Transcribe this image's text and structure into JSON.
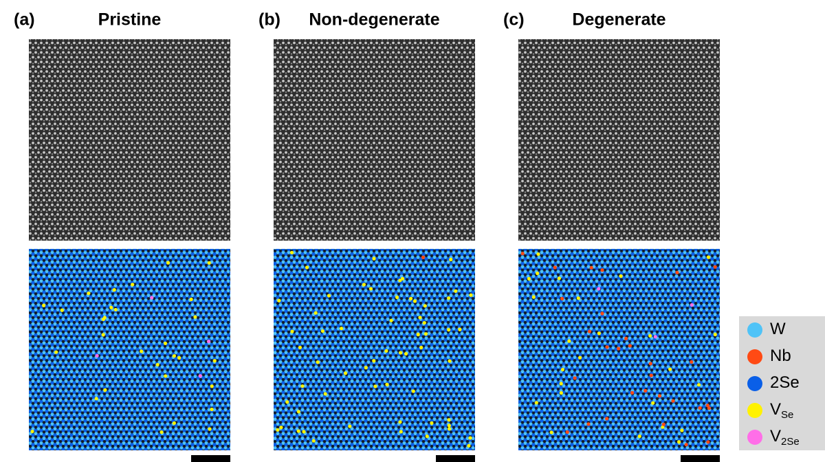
{
  "panels": [
    {
      "label": "(a)",
      "title": "Pristine"
    },
    {
      "label": "(b)",
      "title": "Non-degenerate"
    },
    {
      "label": "(c)",
      "title": "Degenerate"
    }
  ],
  "legend": {
    "items": [
      {
        "main": "W",
        "color": "#4fc3f7"
      },
      {
        "main": "Nb",
        "color": "#ff4a14"
      },
      {
        "main": "2Se",
        "color": "#0a5fe8"
      },
      {
        "main": "V",
        "sub": "Se",
        "color": "#fff200"
      },
      {
        "main": "V",
        "sub": "2Se",
        "color": "#ff6ee8"
      }
    ]
  }
}
